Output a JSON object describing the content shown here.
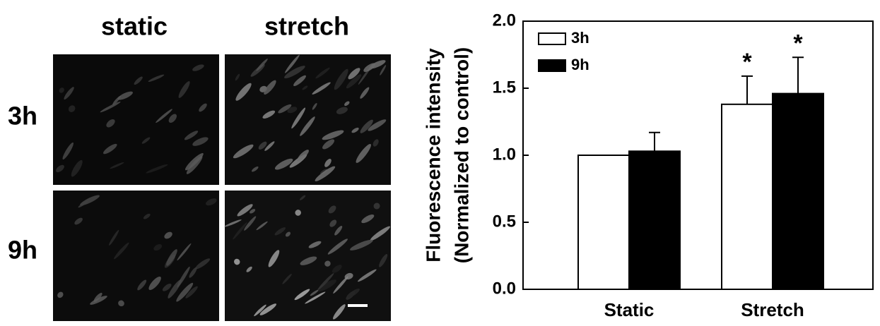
{
  "panels": {
    "columns": [
      "static",
      "stretch"
    ],
    "rows": [
      "3h",
      "9h"
    ]
  },
  "chart_data": {
    "type": "bar",
    "y_label_lines": [
      "Fluorescence intensity",
      "(Normalized to control)"
    ],
    "categories": [
      "Static",
      "Stretch"
    ],
    "series": [
      {
        "name": "3h",
        "color": "#ffffff",
        "values": [
          1.0,
          1.38
        ],
        "errors": [
          null,
          0.21
        ]
      },
      {
        "name": "9h",
        "color": "#000000",
        "values": [
          1.03,
          1.46
        ],
        "errors": [
          0.14,
          0.27
        ]
      }
    ],
    "annotations": [
      "*",
      "*"
    ],
    "ylim": [
      0,
      2
    ],
    "yticks": [
      {
        "value": 0,
        "label": "0.0"
      },
      {
        "value": 0.5,
        "label": "0.5"
      },
      {
        "value": 1,
        "label": "1.0"
      },
      {
        "value": 1.5,
        "label": "1.5"
      },
      {
        "value": 2,
        "label": "2.0"
      }
    ],
    "legend": "upper-left"
  }
}
